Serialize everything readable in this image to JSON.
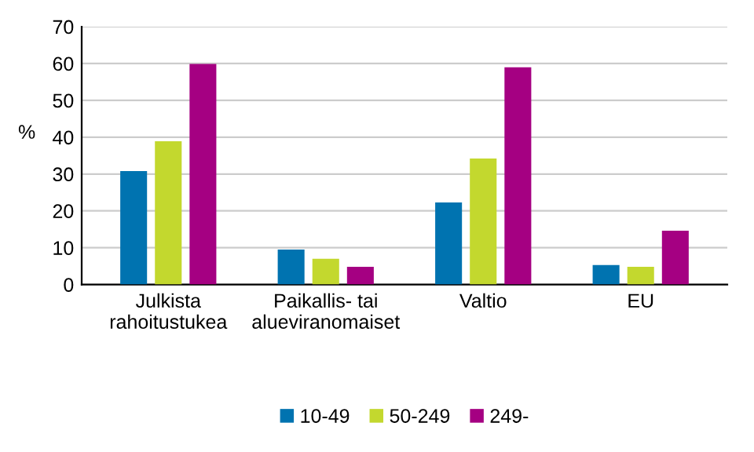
{
  "chart_data": {
    "type": "bar",
    "categories": [
      "Julkista\nrahoitustukea",
      "Paikallis- tai\nalueviranomaiset",
      "Valtio",
      "EU"
    ],
    "series": [
      {
        "name": "10-49",
        "color": "#0073b0",
        "values": [
          30.8,
          9.5,
          22.3,
          5.3
        ]
      },
      {
        "name": "50-249",
        "color": "#c3d82e",
        "values": [
          38.9,
          7.0,
          34.2,
          4.8
        ]
      },
      {
        "name": "249-",
        "color": "#a50082",
        "values": [
          59.9,
          4.8,
          59.0,
          14.6
        ]
      }
    ],
    "ylabel": "%",
    "ylim": [
      0,
      70
    ],
    "yticks": [
      0,
      10,
      20,
      30,
      40,
      50,
      60,
      70
    ],
    "grid": "y",
    "legend": "bottom"
  }
}
